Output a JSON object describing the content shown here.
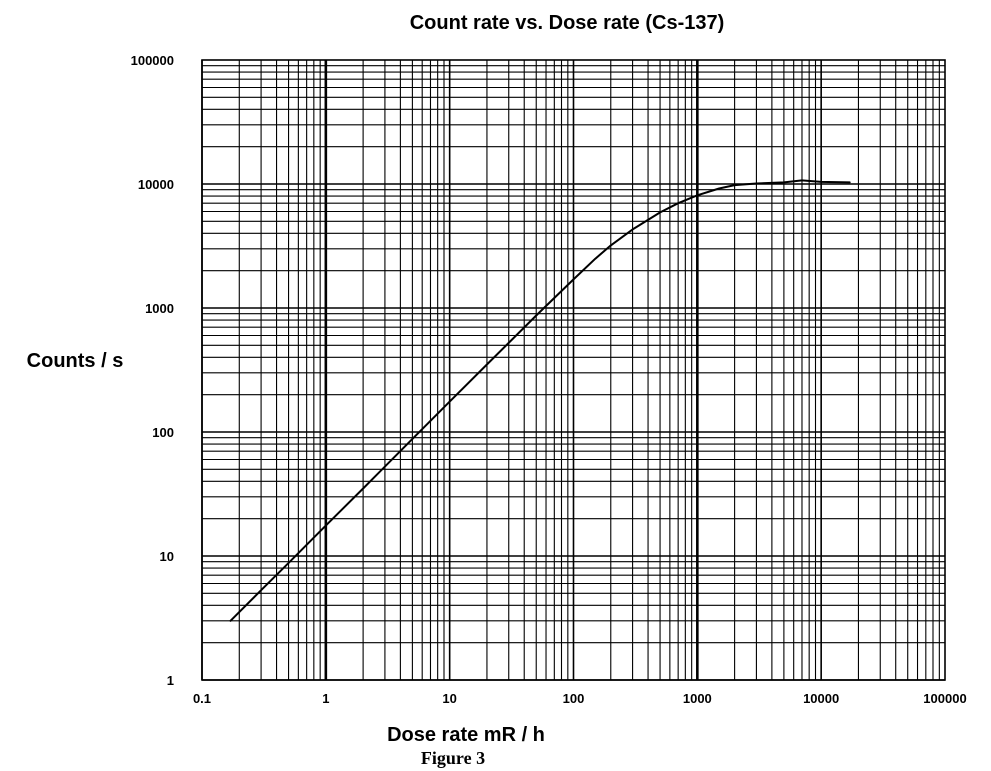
{
  "chart_data": {
    "type": "line",
    "title": "Count rate vs. Dose rate (Cs-137)",
    "xlabel": "Dose rate mR / h",
    "ylabel": "Counts / s",
    "caption": "Figure 3",
    "xscale": "log",
    "yscale": "log",
    "xlim": [
      0.1,
      100000
    ],
    "ylim": [
      1,
      100000
    ],
    "x_tick_labels": [
      "0.1",
      "1",
      "10",
      "100",
      "1000",
      "10000",
      "100000"
    ],
    "y_tick_labels": [
      "1",
      "10",
      "100",
      "1000",
      "10000",
      "100000"
    ],
    "x_ticks": [
      0.1,
      1,
      10,
      100,
      1000,
      10000,
      100000
    ],
    "y_ticks": [
      1,
      10,
      100,
      1000,
      10000,
      100000
    ],
    "grid": true,
    "legend": "none",
    "series": [
      {
        "x": [
          0.17,
          0.3,
          0.5,
          1,
          2,
          5,
          10,
          20,
          50,
          100,
          150,
          200,
          300,
          500,
          700,
          1000,
          1500,
          2000,
          3000,
          5000,
          7000,
          10000,
          17000
        ],
        "y": [
          3,
          5.3,
          8.8,
          17.6,
          35,
          88,
          176,
          350,
          870,
          1700,
          2500,
          3200,
          4300,
          5900,
          7000,
          8100,
          9200,
          9800,
          10100,
          10300,
          10700,
          10400,
          10300
        ]
      }
    ]
  }
}
